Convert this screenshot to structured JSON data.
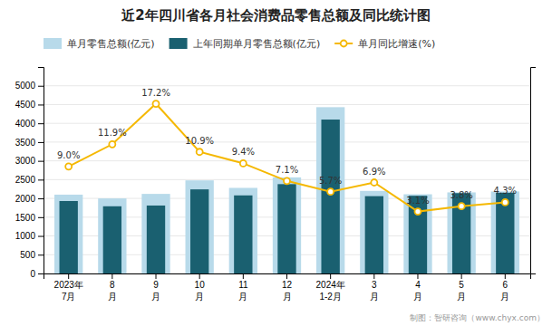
{
  "chart_data": {
    "type": "bar",
    "title": "近2年四川省各月社会消费品零售总额及同比统计图",
    "categories": [
      "2023年\n7月",
      "8\n月",
      "9\n月",
      "10\n月",
      "11\n月",
      "12\n月",
      "2024年\n1-2月",
      "3\n月",
      "4\n月",
      "5\n月",
      "6\n月"
    ],
    "series": [
      {
        "name": "单月零售总额(亿元)",
        "type": "bar",
        "color": "#b8daea",
        "values": [
          2100,
          2000,
          2120,
          2480,
          2280,
          2560,
          4430,
          2200,
          2110,
          2160,
          2185
        ]
      },
      {
        "name": "上年同期单月零售总额(亿元)",
        "type": "bar",
        "color": "#1a6070",
        "values": [
          1930,
          1790,
          1810,
          2240,
          2080,
          2380,
          4100,
          2060,
          2070,
          2140,
          2150
        ]
      },
      {
        "name": "单月同比增速(%)",
        "type": "line",
        "axis": "y2",
        "color": "#f5b800",
        "marker": "circle",
        "data_labels": true,
        "values": [
          9.0,
          11.9,
          17.2,
          10.9,
          9.4,
          7.1,
          5.7,
          6.9,
          3.1,
          3.8,
          4.3
        ],
        "value_labels": [
          "9.0%",
          "11.9%",
          "17.2%",
          "10.9%",
          "9.4%",
          "7.1%",
          "5.7%",
          "6.9%",
          "3.1%",
          "3.8%",
          "4.3%"
        ]
      }
    ],
    "ylim": [
      0,
      5500
    ],
    "yticks": [
      0,
      500,
      1000,
      1500,
      2000,
      2500,
      3000,
      3500,
      4000,
      4500,
      5000
    ],
    "y2lim": [
      -5,
      22
    ],
    "grid": true,
    "legend": "top left",
    "footer": "制图：智研咨询（www.chyx.com）"
  }
}
